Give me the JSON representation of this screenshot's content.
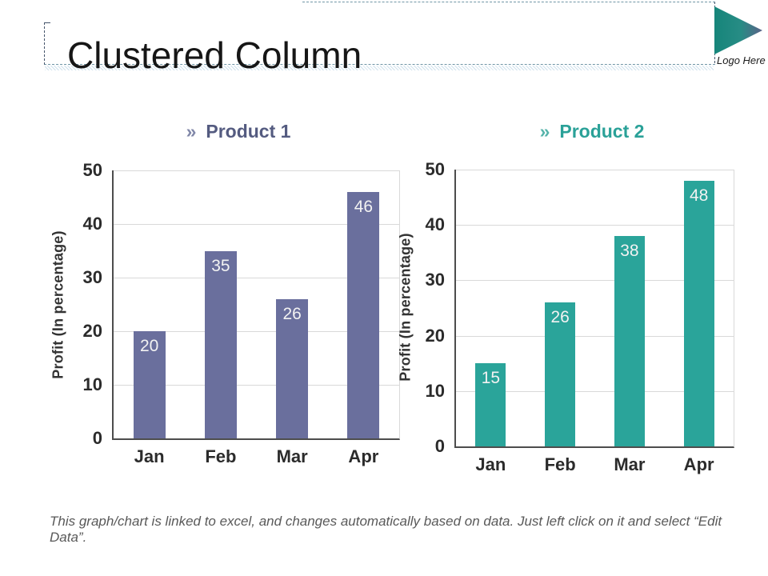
{
  "slide": {
    "title": "Clustered Column",
    "logo_text": "Logo Here",
    "footer": "This graph/chart is linked to excel, and changes automatically based on data. Just left click on it and select “Edit Data”."
  },
  "chart_data": [
    {
      "type": "bar",
      "title": "Product 1",
      "bullet": "»",
      "categories": [
        "Jan",
        "Feb",
        "Mar",
        "Apr"
      ],
      "values": [
        20,
        35,
        26,
        46
      ],
      "ylabel": "Profit  (In percentage)",
      "ylim": [
        0,
        50
      ],
      "ytick_step": 10,
      "grid": true,
      "legend": "none",
      "bar_color": "#6a6f9d",
      "title_color": "#545b80",
      "bullet_color": "#8087a8",
      "value_label_color": "#f2f2f2"
    },
    {
      "type": "bar",
      "title": "Product 2",
      "bullet": "»",
      "categories": [
        "Jan",
        "Feb",
        "Mar",
        "Apr"
      ],
      "values": [
        15,
        26,
        38,
        48
      ],
      "ylabel": "Profit  (In percentage)",
      "ylim": [
        0,
        50
      ],
      "ytick_step": 10,
      "grid": true,
      "legend": "none",
      "bar_color": "#2aa49a",
      "title_color": "#2aa198",
      "bullet_color": "#55b3aa",
      "value_label_color": "#f2f2f2"
    }
  ]
}
